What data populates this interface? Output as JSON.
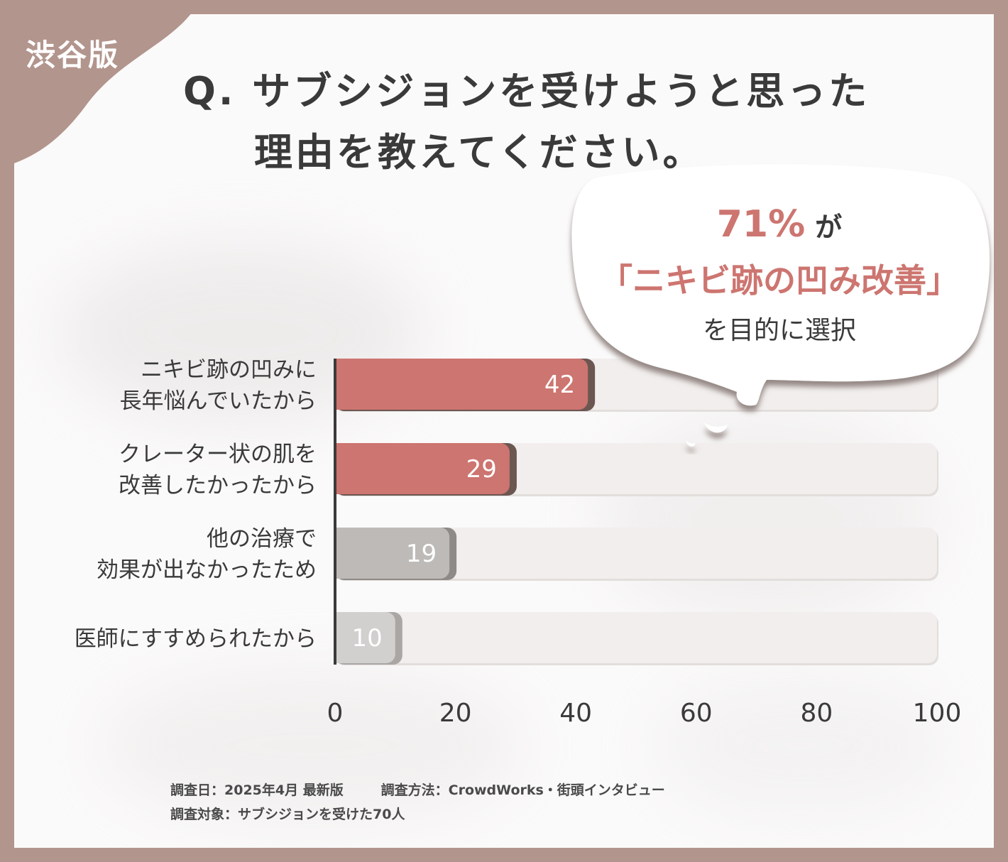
{
  "badge": "渋谷版",
  "question": {
    "line1": "Q. サブシジョンを受けようと思った",
    "line2": "理由を教えてください。"
  },
  "callout": {
    "percent": "71%",
    "suffix": "が",
    "line2": "「ニキビ跡の凹み改善」",
    "line3": "を目的に選択"
  },
  "colors": {
    "background_frame": "#b2958d",
    "highlight_bar": "#cd7570",
    "gray_bar_dark": "#bdbab8",
    "gray_bar_light": "#d2d0cf",
    "track": "#f1eeed"
  },
  "chart_data": {
    "type": "bar",
    "orientation": "horizontal",
    "categories": [
      [
        "ニキビ跡の凹みに",
        "長年悩んでいたから"
      ],
      [
        "クレーター状の肌を",
        "改善したかったから"
      ],
      [
        "他の治療で",
        "効果が出なかったため"
      ],
      [
        "医師にすすめられたから"
      ]
    ],
    "values": [
      42,
      29,
      19,
      10
    ],
    "value_labels": [
      "42",
      "29",
      "19",
      "10"
    ],
    "bar_colors": [
      "#cd7570",
      "#cd7570",
      "#bdbab8",
      "#d2d0cf"
    ],
    "xlim": [
      0,
      100
    ],
    "xticks": [
      "0",
      "20",
      "40",
      "60",
      "80",
      "100"
    ],
    "grid": false
  },
  "footer": {
    "line1_a": "調査日：2025年4月 最新版",
    "line1_b": "調査方法：CrowdWorks・街頭インタビュー",
    "line2": "調査対象：サブシジョンを受けた70人"
  }
}
